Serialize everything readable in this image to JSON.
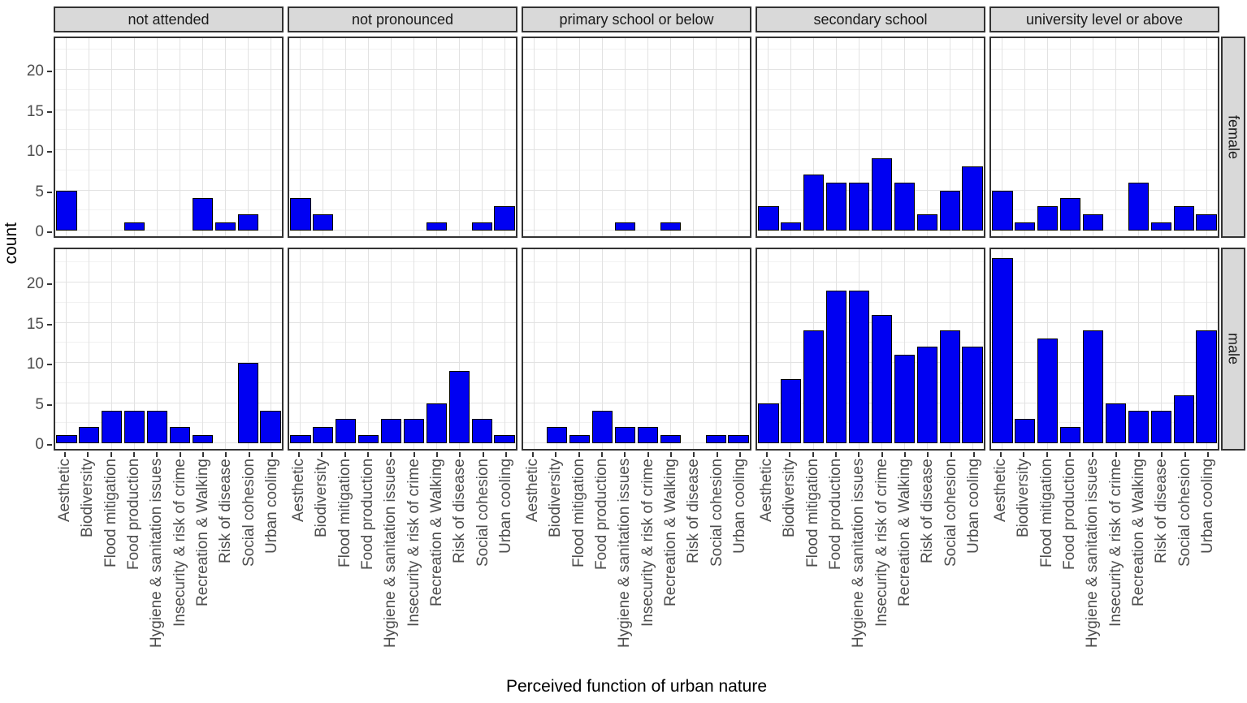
{
  "chart_data": {
    "type": "bar",
    "title": "",
    "xlabel": "Perceived function of urban nature",
    "ylabel": "count",
    "ylim": [
      0,
      24
    ],
    "yticks": [
      0,
      5,
      10,
      15,
      20
    ],
    "grid": "on",
    "legend": "none",
    "categories": [
      "Aesthetic",
      "Biodiversity",
      "Flood mitigation",
      "Food production",
      "Hygiene & sanitation issues",
      "Insecurity & risk of crime",
      "Recreation & Walking",
      "Risk of disease",
      "Social cohesion",
      "Urban cooling"
    ],
    "facet_columns": [
      "not attended",
      "not pronounced",
      "primary school or below",
      "secondary school",
      "university level or above"
    ],
    "facet_rows": [
      "female",
      "male"
    ],
    "series": [
      {
        "name": "female",
        "facets": [
          [
            5,
            0,
            0,
            1,
            0,
            0,
            4,
            1,
            2,
            0
          ],
          [
            4,
            2,
            0,
            0,
            0,
            0,
            1,
            0,
            1,
            3
          ],
          [
            0,
            0,
            0,
            0,
            1,
            0,
            1,
            0,
            0,
            0
          ],
          [
            3,
            1,
            7,
            6,
            6,
            9,
            6,
            2,
            5,
            8
          ],
          [
            5,
            1,
            3,
            4,
            2,
            0,
            6,
            1,
            3,
            2
          ]
        ]
      },
      {
        "name": "male",
        "facets": [
          [
            1,
            2,
            4,
            4,
            4,
            2,
            1,
            0,
            10,
            4
          ],
          [
            1,
            2,
            3,
            1,
            3,
            3,
            5,
            9,
            3,
            1
          ],
          [
            0,
            2,
            1,
            4,
            2,
            2,
            1,
            0,
            1,
            1
          ],
          [
            5,
            8,
            14,
            19,
            19,
            16,
            11,
            12,
            14,
            12
          ],
          [
            23,
            3,
            13,
            2,
            14,
            5,
            4,
            4,
            6,
            14
          ]
        ]
      }
    ]
  },
  "colors": {
    "bar_fill": "#0000F2",
    "bar_border": "#000000",
    "strip_bg": "#D9D9D9",
    "panel_border": "#333333",
    "grid_major": "#E2E2E2",
    "grid_minor": "#F1F1F1",
    "axis_text": "#4D4D4D",
    "title_text": "#000000"
  }
}
